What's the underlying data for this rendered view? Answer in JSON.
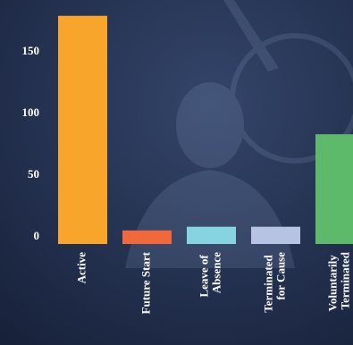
{
  "chart_data": {
    "type": "bar",
    "categories": [
      "Active",
      "Future Start",
      "Leave of Absence",
      "Terminated for Cause",
      "Voluntarily Terminated"
    ],
    "values": [
      185,
      11,
      14,
      14,
      89
    ],
    "colors": [
      "#f7a52b",
      "#f1693a",
      "#86d4e2",
      "#b7c3e2",
      "#5dba6a"
    ],
    "ylim": [
      0,
      190
    ],
    "yticks": [
      0,
      50,
      100,
      150
    ],
    "grid": false
  }
}
